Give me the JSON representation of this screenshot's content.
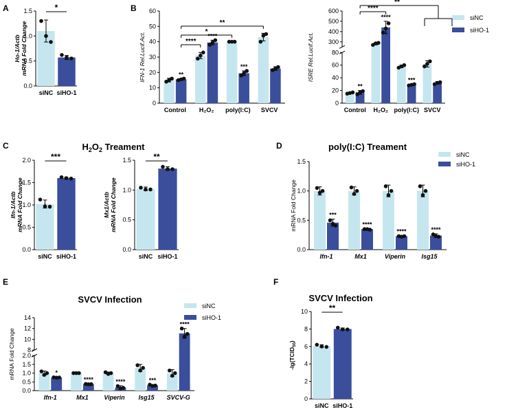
{
  "colors": {
    "siNC": "#c5e6ef",
    "siHO1": "#3a4e9c",
    "axis": "#000000",
    "dot": "#111111"
  },
  "legend": {
    "siNC": "siNC",
    "siHO1": "siHO-1"
  },
  "chart_data": [
    {
      "panel": "A",
      "type": "bar",
      "title": "",
      "categories": [
        "siNC",
        "siHO-1"
      ],
      "values": [
        1.1,
        0.57
      ],
      "errors": [
        0.22,
        0.04
      ],
      "points": [
        [
          1.3,
          1.0,
          0.88
        ],
        [
          0.62,
          0.57,
          0.55
        ]
      ],
      "ylabel": "Ho-1/Actb mRNA Fold Change",
      "ylabel_lines": [
        "Ho-1/Actb",
        "mRNA Fold Change"
      ],
      "ylim": [
        0,
        1.5
      ],
      "yticks": [
        "0.0",
        "0.5",
        "1.0",
        "1.5"
      ],
      "significance": [
        {
          "label": "*"
        }
      ]
    },
    {
      "panel": "B",
      "type": "bar",
      "title": "",
      "categories": [
        "Control",
        "H2O2",
        "poly(I:C)",
        "SVCV"
      ],
      "category_labels": [
        "Control",
        "H₂O₂",
        "poly(I:C)",
        "SVCV"
      ],
      "series": [
        {
          "name": "siNC",
          "values": [
            15,
            31,
            40,
            43
          ],
          "errors": [
            1.2,
            2.0,
            0.5,
            2.5
          ],
          "points": [
            [
              14,
              15,
              16
            ],
            [
              29,
              31,
              33
            ],
            [
              40,
              40,
              40
            ],
            [
              40,
              44,
              45
            ]
          ]
        },
        {
          "name": "siHO-1",
          "values": [
            15.5,
            39.5,
            19.5,
            22.5
          ],
          "errors": [
            0.5,
            1.5,
            1.5,
            1.2
          ],
          "points": [
            [
              15,
              15.5,
              16
            ],
            [
              38,
              39.5,
              41
            ],
            [
              18,
              19.5,
              21
            ],
            [
              21.5,
              22.5,
              23.5
            ]
          ]
        }
      ],
      "ylabel": "IFN-1 Rel.Lucif.Act.",
      "ylim": [
        0,
        60
      ],
      "yticks": [
        "0",
        "10",
        "20",
        "30",
        "40",
        "50",
        "60"
      ],
      "bar_stars": [
        "",
        "**",
        "",
        "****",
        "",
        "***"
      ],
      "brackets": [
        "****",
        "*",
        "**"
      ]
    },
    {
      "panel": "B2",
      "type": "bar",
      "title": "",
      "categories": [
        "Control",
        "H2O2",
        "poly(I:C)",
        "SVCV"
      ],
      "category_labels": [
        "Control",
        "H₂O₂",
        "poly(I:C)",
        "SVCV"
      ],
      "series": [
        {
          "name": "siNC",
          "values": [
            16,
            280,
            58,
            62
          ],
          "errors": [
            1,
            10,
            2,
            5
          ],
          "points": [
            [
              15,
              16,
              17
            ],
            [
              270,
              285,
              290
            ],
            [
              56,
              58,
              60
            ],
            [
              58,
              62,
              66
            ]
          ]
        },
        {
          "name": "siHO-1",
          "values": [
            17,
            440,
            29,
            32
          ],
          "errors": [
            3,
            60,
            1,
            2
          ],
          "points": [
            [
              14,
              17,
              19
            ],
            [
              390,
              430,
              480
            ],
            [
              28,
              29,
              30
            ],
            [
              30,
              32,
              33
            ]
          ]
        }
      ],
      "ylabel": "ISRE Rel.Lucif.Act.",
      "axis_break": {
        "lower": [
          0,
          80
        ],
        "upper": [
          250,
          600
        ]
      },
      "yticks_lower": [
        "0",
        "20",
        "40",
        "60",
        "80"
      ],
      "yticks_upper": [
        "300",
        "400",
        "500",
        "600"
      ],
      "bar_stars": [
        "",
        "**",
        "",
        "****",
        "",
        "***"
      ],
      "brackets": [
        "****",
        "**"
      ]
    },
    {
      "panel": "C",
      "type": "bar",
      "title": "H2O2 Treament",
      "categories": [
        "siNC",
        "siHO-1"
      ],
      "values": [
        1.02,
        1.6
      ],
      "errors": [
        0.09,
        0.02
      ],
      "points": [
        [
          1.12,
          0.97,
          0.96
        ],
        [
          1.62,
          1.6,
          1.59
        ]
      ],
      "ylabel": "Ifn-1/Actb mRNA Fold Change",
      "ylabel_lines": [
        "Ifn-1/Actb",
        "mRNA Fold Change"
      ],
      "ylim": [
        0,
        2.0
      ],
      "yticks": [
        "0.0",
        "0.5",
        "1.0",
        "1.5",
        "2.0"
      ],
      "significance": [
        {
          "label": "***"
        }
      ]
    },
    {
      "panel": "C2",
      "type": "bar",
      "title": "",
      "categories": [
        "siNC",
        "siHO-1"
      ],
      "values": [
        1.02,
        1.36
      ],
      "errors": [
        0.03,
        0.03
      ],
      "points": [
        [
          1.04,
          1.01,
          1.01
        ],
        [
          1.39,
          1.35,
          1.35
        ]
      ],
      "ylabel": "Mx1/Actb mRNA Fold Change",
      "ylabel_lines": [
        "Mx1/Actb",
        "mRNA Fold Change"
      ],
      "ylim": [
        0,
        1.5
      ],
      "yticks": [
        "0.0",
        "0.5",
        "1.0",
        "1.5"
      ],
      "significance": [
        {
          "label": "**"
        }
      ]
    },
    {
      "panel": "D",
      "type": "bar",
      "title": "poly(I:C) Treament",
      "categories": [
        "Ifn-1",
        "Mx1",
        "Viperin",
        "Isg15"
      ],
      "series": [
        {
          "name": "siNC",
          "values": [
            1.0,
            1.0,
            1.0,
            1.0
          ],
          "errors": [
            0.07,
            0.07,
            0.1,
            0.1
          ],
          "points": [
            [
              1.05,
              0.97,
              1.0
            ],
            [
              1.06,
              0.95,
              1.0
            ],
            [
              1.08,
              0.93,
              1.0
            ],
            [
              1.08,
              0.93,
              1.0
            ]
          ]
        },
        {
          "name": "siHO-1",
          "values": [
            0.46,
            0.35,
            0.23,
            0.24
          ],
          "errors": [
            0.06,
            0.01,
            0.01,
            0.03
          ],
          "points": [
            [
              0.5,
              0.44,
              0.41
            ],
            [
              0.35,
              0.35,
              0.34
            ],
            [
              0.23,
              0.22,
              0.23
            ],
            [
              0.26,
              0.23,
              0.22
            ]
          ]
        }
      ],
      "ylabel": "mRNA Fold Change",
      "ylim": [
        0,
        1.5
      ],
      "yticks": [
        "0.0",
        "0.5",
        "1.0",
        "1.5"
      ],
      "bar_stars": [
        "***",
        "****",
        "****",
        "****"
      ]
    },
    {
      "panel": "E",
      "type": "bar",
      "title": "SVCV Infection",
      "categories": [
        "Ifn-1",
        "Mx1",
        "Viperin",
        "Isg15",
        "SVCV-G"
      ],
      "series": [
        {
          "name": "siNC",
          "values": [
            1.0,
            1.0,
            1.0,
            1.3,
            1.0
          ],
          "errors": [
            0.12,
            0.03,
            0.06,
            0.2,
            0.2
          ],
          "points": [
            [
              1.1,
              0.9,
              1.0
            ],
            [
              1.0,
              1.0,
              1.0
            ],
            [
              1.05,
              0.95,
              1.0
            ],
            [
              1.45,
              1.15,
              1.3
            ],
            [
              1.15,
              0.85,
              1.0
            ]
          ]
        },
        {
          "name": "siHO-1",
          "values": [
            0.75,
            0.37,
            0.18,
            0.3,
            11.1
          ],
          "errors": [
            0.03,
            0.02,
            0.1,
            0.05,
            0.9
          ],
          "points": [
            [
              0.76,
              0.74,
              0.75
            ],
            [
              0.38,
              0.36,
              0.37
            ],
            [
              0.26,
              0.12,
              0.16
            ],
            [
              0.34,
              0.27,
              0.29
            ],
            [
              12,
              10.5,
              11
            ]
          ]
        }
      ],
      "ylabel": "mRNA Fold Change",
      "axis_break": {
        "lower": [
          0,
          2
        ],
        "upper": [
          8,
          14
        ]
      },
      "yticks_lower": [
        "0.0",
        "0.5",
        "1.0",
        "1.5",
        "2.0"
      ],
      "yticks_upper": [
        "8",
        "10",
        "12",
        "14"
      ],
      "bar_stars": [
        "*",
        "****",
        "****",
        "***",
        "****"
      ]
    },
    {
      "panel": "F",
      "type": "bar",
      "title": "SVCV Infection",
      "categories": [
        "siNC",
        "siHO-1"
      ],
      "values": [
        6.05,
        8.0
      ],
      "errors": [
        0.15,
        0.12
      ],
      "points": [
        [
          6.2,
          6.0,
          5.95
        ],
        [
          8.15,
          7.95,
          7.95
        ]
      ],
      "ylabel": "-lg(TCID50)",
      "ylim": [
        0,
        10
      ],
      "yticks": [
        "0",
        "2",
        "4",
        "6",
        "8",
        "10"
      ],
      "significance": [
        {
          "label": "**"
        }
      ]
    }
  ],
  "panel_letters": [
    "A",
    "B",
    "C",
    "D",
    "E",
    "F"
  ]
}
